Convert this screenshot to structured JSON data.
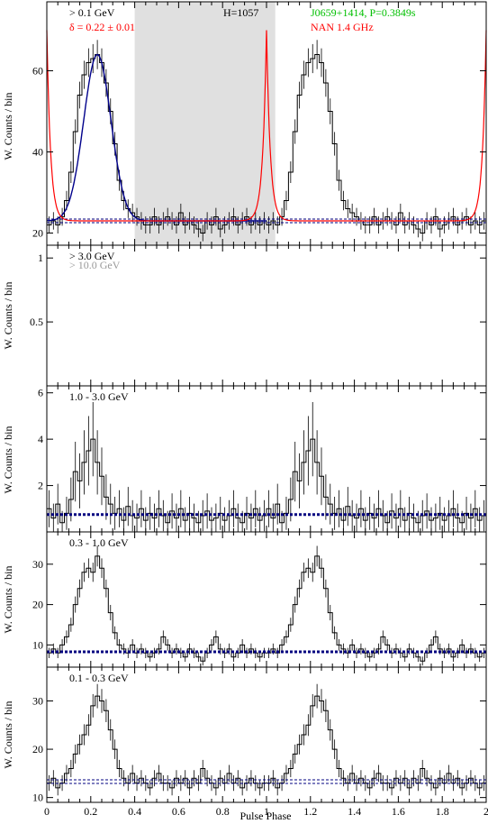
{
  "figure": {
    "xlabel": "Pulse Phase",
    "ylabel": "W. Counts / bin",
    "x_ticks": [
      "0",
      "0.2",
      "0.4",
      "0.6",
      "0.8",
      "1",
      "1.2",
      "1.4",
      "1.6",
      "1.8",
      "2"
    ],
    "colors": {
      "histogram": "#000000",
      "radio": "#ff0000",
      "fit": "#00008b",
      "background_level": "#000080",
      "highlight": "#e0e0e0",
      "pulsar_label": "#00c000",
      "high_energy_label": "#999999"
    }
  },
  "chart_data": [
    {
      "type": "histogram",
      "panel": "0.1 GeV and above",
      "energy_label": "> 0.1 GeV",
      "delta_label": "δ = 0.22 ± 0.01",
      "h_label": "H=1057",
      "pulsar_label": "J0659+1414, P=0.3849s",
      "radio_label": "NAN 1.4 GHz",
      "ylim": [
        17,
        77
      ],
      "yticks": [
        "20",
        "40",
        "60"
      ],
      "background_level": 23,
      "highlight_phase": [
        0.4,
        1.04
      ],
      "x": [
        0.0,
        0.02,
        0.04,
        0.06,
        0.08,
        0.1,
        0.12,
        0.14,
        0.16,
        0.18,
        0.2,
        0.22,
        0.24,
        0.26,
        0.28,
        0.3,
        0.32,
        0.34,
        0.36,
        0.38,
        0.4,
        0.42,
        0.44,
        0.46,
        0.48,
        0.5,
        0.52,
        0.54,
        0.56,
        0.58,
        0.6,
        0.62,
        0.64,
        0.66,
        0.68,
        0.7,
        0.72,
        0.74,
        0.76,
        0.78,
        0.8,
        0.82,
        0.84,
        0.86,
        0.88,
        0.9,
        0.92,
        0.94,
        0.96,
        0.98
      ],
      "values": [
        22,
        23,
        22,
        24,
        28,
        35,
        45,
        54,
        59,
        62,
        63,
        64,
        62,
        57,
        50,
        42,
        33,
        28,
        26,
        25,
        24,
        23,
        22,
        22,
        24,
        22,
        23,
        24,
        23,
        22,
        25,
        22,
        23,
        22,
        21,
        20,
        23,
        22,
        24,
        21,
        22,
        23,
        24,
        22,
        23,
        24,
        22,
        23,
        22,
        23
      ],
      "radio_peaks": [
        0.0,
        1.0,
        2.0
      ],
      "radio_peak_value": 70,
      "fit_range": [
        0.0,
        1.0
      ]
    },
    {
      "type": "histogram",
      "panel": "3.0 GeV and above",
      "energy_label": "> 3.0 GeV",
      "energy_label_2": "> 10.0 GeV",
      "ylim": [
        0,
        1.1
      ],
      "yticks": [
        "0.5",
        "1"
      ],
      "x": [],
      "values": []
    },
    {
      "type": "histogram",
      "panel": "1.0 - 3.0 GeV",
      "energy_label": "1.0 - 3.0 GeV",
      "ylim": [
        0,
        6.3
      ],
      "yticks": [
        "2",
        "4",
        "6"
      ],
      "background_level": 0.75,
      "x": [
        0.0,
        0.02,
        0.04,
        0.06,
        0.08,
        0.1,
        0.12,
        0.14,
        0.16,
        0.18,
        0.2,
        0.22,
        0.24,
        0.26,
        0.28,
        0.3,
        0.32,
        0.34,
        0.36,
        0.38,
        0.4,
        0.42,
        0.44,
        0.46,
        0.48,
        0.5,
        0.52,
        0.54,
        0.56,
        0.58,
        0.6,
        0.62,
        0.64,
        0.66,
        0.68,
        0.7,
        0.72,
        0.74,
        0.76,
        0.78,
        0.8,
        0.82,
        0.84,
        0.86,
        0.88,
        0.9,
        0.92,
        0.94,
        0.96,
        0.98
      ],
      "values": [
        1.0,
        0.6,
        1.2,
        0.4,
        0.8,
        1.4,
        2.6,
        2.2,
        3.0,
        3.5,
        4.0,
        3.0,
        2.4,
        1.5,
        1.2,
        0.8,
        1.0,
        0.5,
        1.1,
        0.7,
        0.6,
        1.0,
        0.5,
        0.8,
        0.6,
        1.0,
        0.7,
        0.4,
        0.9,
        0.6,
        1.0,
        0.5,
        0.8,
        0.6,
        0.4,
        0.7,
        0.9,
        0.5,
        0.6,
        0.8,
        0.5,
        0.7,
        1.0,
        0.6,
        0.4,
        0.8,
        0.6,
        1.0,
        0.5,
        0.7
      ]
    },
    {
      "type": "histogram",
      "panel": "0.3 - 1.0 GeV",
      "energy_label": "0.3 - 1.0 GeV",
      "ylim": [
        4.5,
        38
      ],
      "yticks": [
        "10",
        "20",
        "30"
      ],
      "background_level": 8.3,
      "x": [
        0.0,
        0.02,
        0.04,
        0.06,
        0.08,
        0.1,
        0.12,
        0.14,
        0.16,
        0.18,
        0.2,
        0.22,
        0.24,
        0.26,
        0.28,
        0.3,
        0.32,
        0.34,
        0.36,
        0.38,
        0.4,
        0.42,
        0.44,
        0.46,
        0.48,
        0.5,
        0.52,
        0.54,
        0.56,
        0.58,
        0.6,
        0.62,
        0.64,
        0.66,
        0.68,
        0.7,
        0.72,
        0.74,
        0.76,
        0.78,
        0.8,
        0.82,
        0.84,
        0.86,
        0.88,
        0.9,
        0.92,
        0.94,
        0.96,
        0.98
      ],
      "values": [
        8,
        9,
        8,
        10,
        12,
        15,
        20,
        24,
        28,
        29,
        28,
        32,
        29,
        24,
        18,
        13,
        10,
        9,
        8,
        10,
        8,
        9,
        8,
        7,
        8,
        9,
        12,
        10,
        8,
        9,
        8,
        7,
        9,
        8,
        7,
        6,
        8,
        10,
        12,
        9,
        8,
        9,
        7,
        8,
        10,
        8,
        9,
        8,
        7,
        8
      ]
    },
    {
      "type": "histogram",
      "panel": "0.1 - 0.3 GeV",
      "energy_label": "0.1 - 0.3 GeV",
      "ylim": [
        9,
        37
      ],
      "yticks": [
        "10",
        "20",
        "30"
      ],
      "background_level": 13.3,
      "x": [
        0.0,
        0.02,
        0.04,
        0.06,
        0.08,
        0.1,
        0.12,
        0.14,
        0.16,
        0.18,
        0.2,
        0.22,
        0.24,
        0.26,
        0.28,
        0.3,
        0.32,
        0.34,
        0.36,
        0.38,
        0.4,
        0.42,
        0.44,
        0.46,
        0.48,
        0.5,
        0.52,
        0.54,
        0.56,
        0.58,
        0.6,
        0.62,
        0.64,
        0.66,
        0.68,
        0.7,
        0.72,
        0.74,
        0.76,
        0.78,
        0.8,
        0.82,
        0.84,
        0.86,
        0.88,
        0.9,
        0.92,
        0.94,
        0.96,
        0.98
      ],
      "values": [
        13,
        14,
        12,
        13,
        15,
        16,
        19,
        21,
        23,
        25,
        29,
        31,
        30,
        28,
        24,
        20,
        16,
        14,
        13,
        15,
        13,
        14,
        13,
        12,
        14,
        15,
        13,
        13,
        12,
        14,
        13,
        14,
        12,
        14,
        13,
        16,
        14,
        13,
        12,
        14,
        13,
        15,
        13,
        14,
        12,
        13,
        14,
        13,
        12,
        13
      ]
    }
  ]
}
